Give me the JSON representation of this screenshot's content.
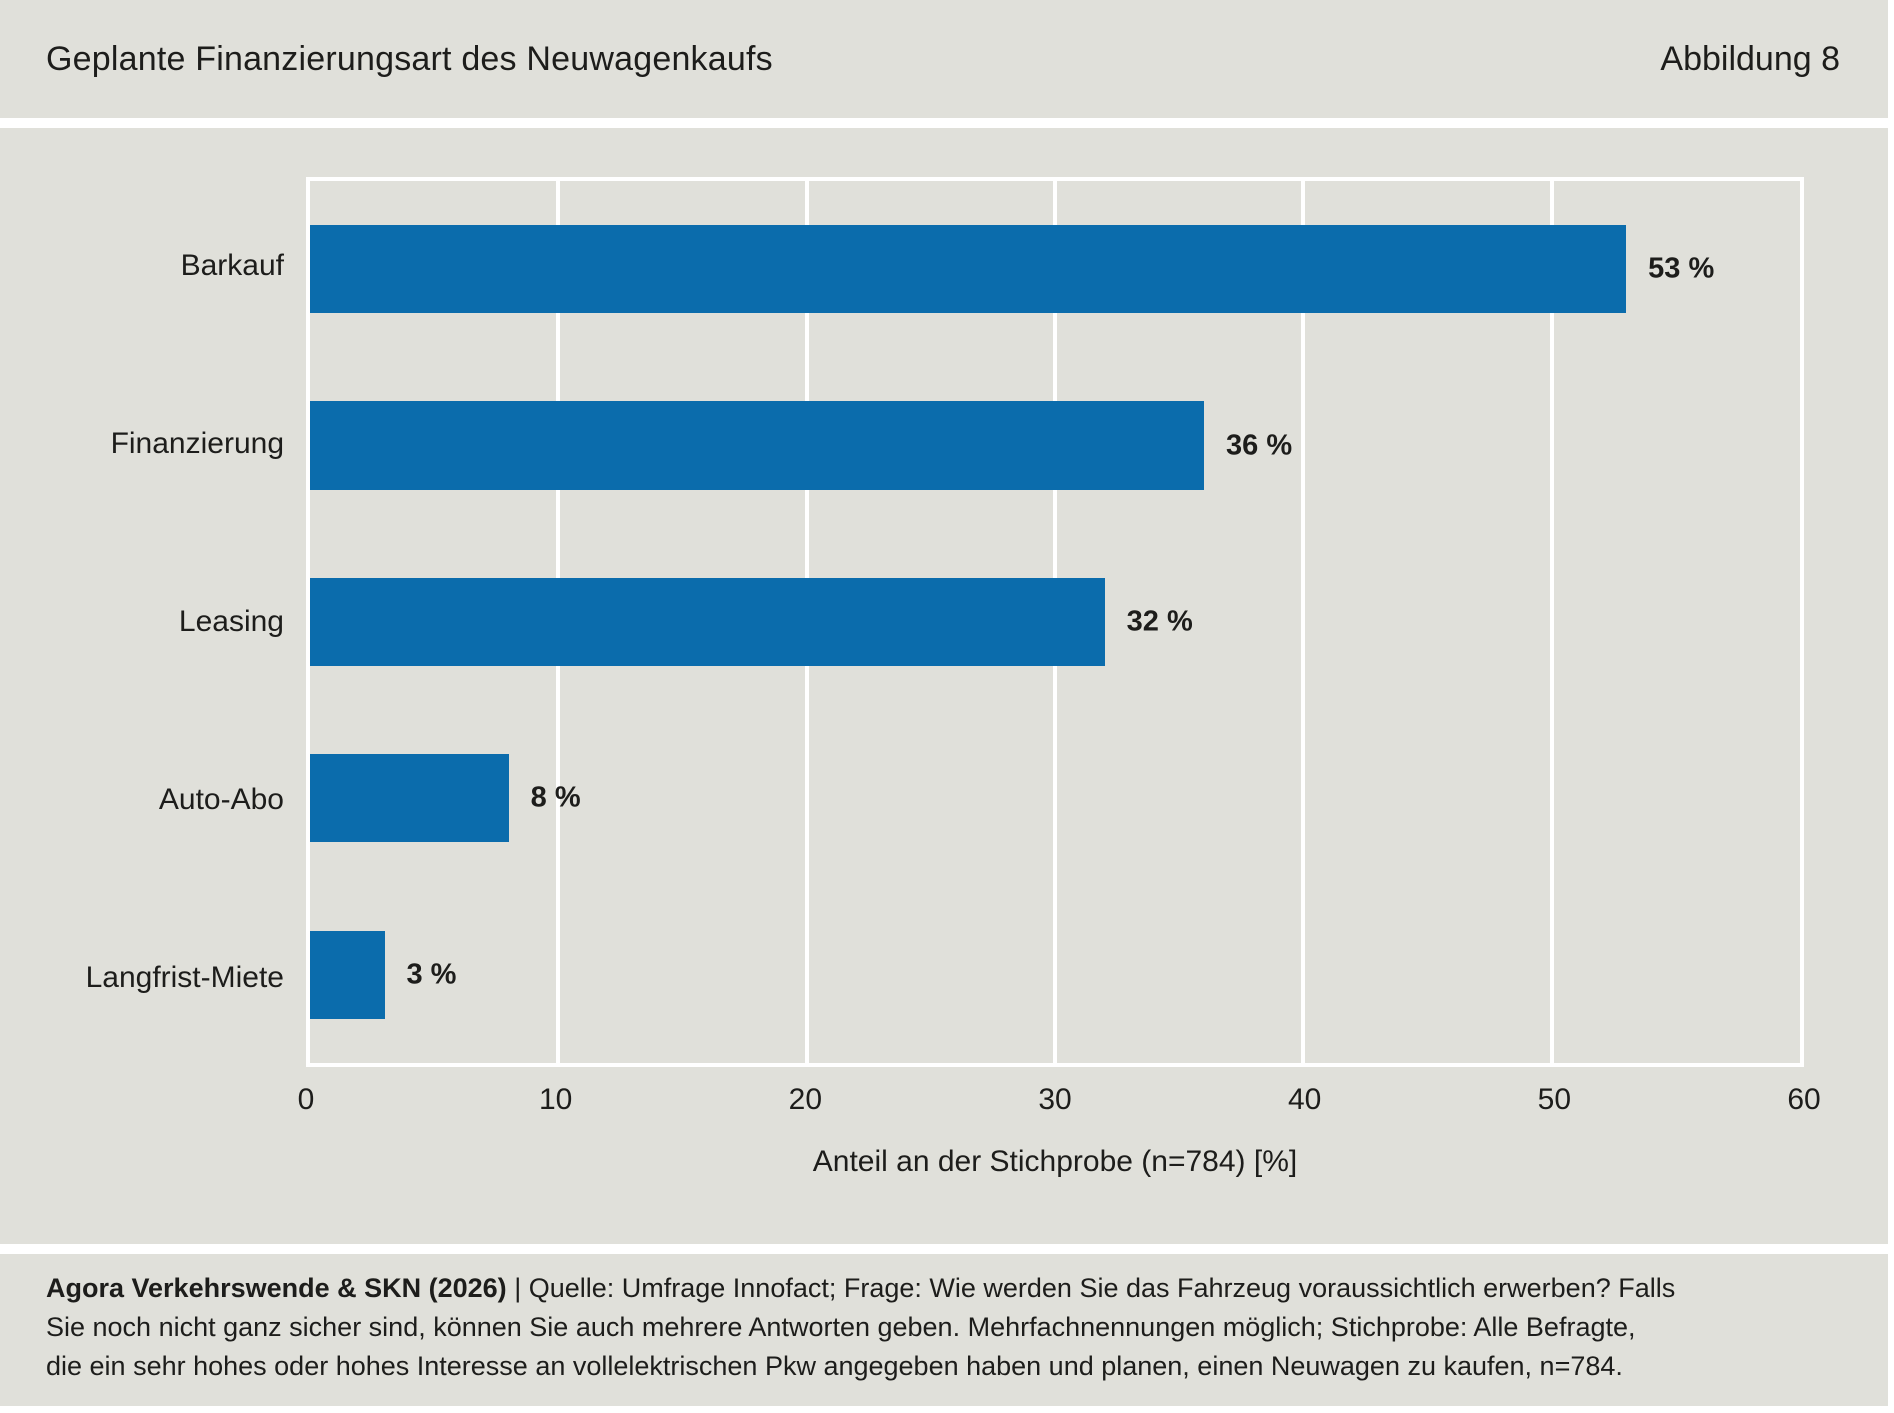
{
  "header": {
    "title": "Geplante Finanzierungsart des Neuwagenkaufs",
    "figure_label": "Abbildung 8"
  },
  "chart_data": {
    "type": "bar",
    "orientation": "horizontal",
    "title": "Geplante Finanzierungsart des Neuwagenkaufs",
    "categories": [
      "Barkauf",
      "Finanzierung",
      "Leasing",
      "Auto-Abo",
      "Langfrist-Miete"
    ],
    "values": [
      53,
      36,
      32,
      8,
      3
    ],
    "value_labels": [
      "53 %",
      "36 %",
      "32 %",
      "8 %",
      "3 %"
    ],
    "xlabel": "Anteil an der Stichprobe (n=784) [%]",
    "xlim": [
      0,
      60
    ],
    "xticks": [
      0,
      10,
      20,
      30,
      40,
      50,
      60
    ],
    "tick_labels": [
      "0",
      "10",
      "20",
      "30",
      "40",
      "50",
      "60"
    ],
    "grid": "vertical-white",
    "legend": "none",
    "bar_color": "#0b6cac",
    "plot_background": "#e0e0da"
  },
  "footer": {
    "source_bold": "Agora Verkehrswende & SKN (2026)",
    "line1_rest": " | Quelle: Umfrage Innofact; Frage: Wie werden Sie das Fahrzeug voraussichtlich erwerben? Falls",
    "line2": "Sie noch nicht ganz sicher sind, können Sie auch mehrere Antworten geben. Mehrfachnennungen möglich; Stichprobe: Alle Befragte,",
    "line3": "die ein sehr hohes oder hohes Interesse an vollelektrischen Pkw angegeben haben und planen, einen Neuwagen zu kaufen, n=784."
  }
}
